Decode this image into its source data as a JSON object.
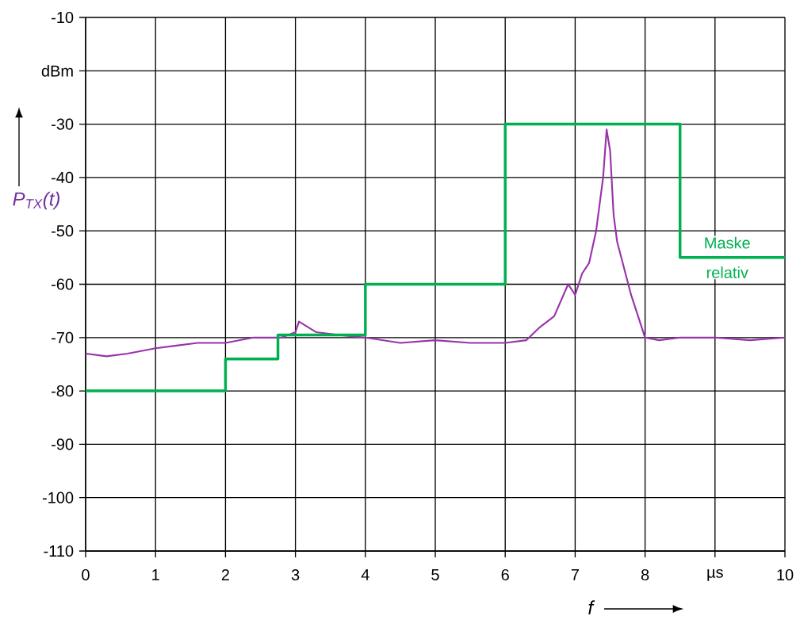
{
  "chart_data": {
    "type": "line",
    "xlabel": "f",
    "ylabel": "P$_{TX}$(t)",
    "x": [
      0,
      0.3,
      0.6,
      1,
      1.3,
      1.6,
      2,
      2.4,
      2.8,
      3,
      3.05,
      3.3,
      3.6,
      4,
      4.5,
      5,
      5.5,
      6,
      6.3,
      6.5,
      6.7,
      6.8,
      6.9,
      7.0,
      7.1,
      7.2,
      7.3,
      7.4,
      7.45,
      7.5,
      7.55,
      7.6,
      7.7,
      7.8,
      7.9,
      8.0,
      8.2,
      8.5,
      9,
      9.5,
      10
    ],
    "series": [
      {
        "color": "#9933aa",
        "values": [
          -73,
          -73.5,
          -73,
          -72,
          -71.5,
          -71,
          -71,
          -70,
          -70,
          -69,
          -67,
          -69,
          -69.5,
          -70,
          -71,
          -70.5,
          -71,
          -71,
          -70.5,
          -68,
          -66,
          -63,
          -60,
          -62,
          -58,
          -56,
          -50,
          -40,
          -31,
          -35,
          -47,
          -52,
          -57,
          -62,
          -66,
          -70,
          -70.5,
          -70,
          -70,
          -70.5,
          -70
        ]
      },
      {
        "type": "step",
        "name": "Maske relativ",
        "color": "#00b050",
        "x": [
          0,
          2,
          2.75,
          4,
          6,
          8.5,
          10
        ],
        "values": [
          -80,
          -74,
          -69.5,
          -60,
          -30,
          -55,
          -55
        ]
      }
    ],
    "xlim": [
      0,
      10
    ],
    "xticks": [
      0,
      1,
      2,
      3,
      4,
      5,
      6,
      7,
      8,
      {
        "value": 9,
        "label": "µs"
      },
      10
    ],
    "ylim": [
      -110,
      -10
    ],
    "yticks": [
      -110,
      -100,
      -90,
      -80,
      -70,
      -60,
      -50,
      -40,
      -30,
      {
        "value": -20,
        "label": "dBm"
      },
      -10
    ],
    "grid": true,
    "marker": "none",
    "line_style": "solid"
  }
}
